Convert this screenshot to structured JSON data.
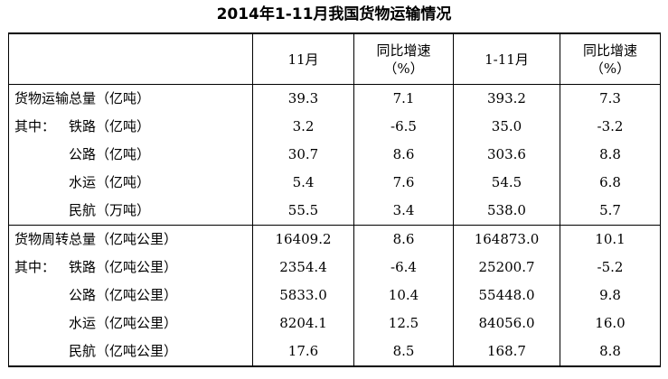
{
  "title": "2014年1-11月我国货物运输情况",
  "headers": {
    "item": "",
    "nov": "11月",
    "yoy_line1": "同比增速",
    "yoy_line2": "（%）",
    "ytd": "1-11月",
    "ytd_yoy_line1": "同比增速",
    "ytd_yoy_line2": "（%）"
  },
  "rows": [
    {
      "prefix": "",
      "label": "货物运输总量（亿吨）",
      "nov": "39.3",
      "nov_yoy": "7.1",
      "ytd": "393.2",
      "ytd_yoy": "7.3"
    },
    {
      "prefix": "其中：",
      "label": "铁路（亿吨）",
      "nov": "3.2",
      "nov_yoy": "-6.5",
      "ytd": "35.0",
      "ytd_yoy": "-3.2"
    },
    {
      "prefix": "",
      "label": "公路（亿吨）",
      "nov": "30.7",
      "nov_yoy": "8.6",
      "ytd": "303.6",
      "ytd_yoy": "8.8"
    },
    {
      "prefix": "",
      "label": "水运（亿吨）",
      "nov": "5.4",
      "nov_yoy": "7.6",
      "ytd": "54.5",
      "ytd_yoy": "6.8"
    },
    {
      "prefix": "",
      "label": "民航（万吨）",
      "nov": "55.5",
      "nov_yoy": "3.4",
      "ytd": "538.0",
      "ytd_yoy": "5.7"
    },
    {
      "prefix": "",
      "label": "货物周转总量（亿吨公里）",
      "nov": "16409.2",
      "nov_yoy": "8.6",
      "ytd": "164873.0",
      "ytd_yoy": "10.1"
    },
    {
      "prefix": "其中：",
      "label": "铁路（亿吨公里）",
      "nov": "2354.4",
      "nov_yoy": "-6.4",
      "ytd": "25200.7",
      "ytd_yoy": "-5.2"
    },
    {
      "prefix": "",
      "label": "公路（亿吨公里）",
      "nov": "5833.0",
      "nov_yoy": "10.4",
      "ytd": "55448.0",
      "ytd_yoy": "9.8"
    },
    {
      "prefix": "",
      "label": "水运（亿吨公里）",
      "nov": "8204.1",
      "nov_yoy": "12.5",
      "ytd": "84056.0",
      "ytd_yoy": "16.0"
    },
    {
      "prefix": "",
      "label": "民航（亿吨公里）",
      "nov": "17.6",
      "nov_yoy": "8.5",
      "ytd": "168.7",
      "ytd_yoy": "8.8"
    }
  ]
}
